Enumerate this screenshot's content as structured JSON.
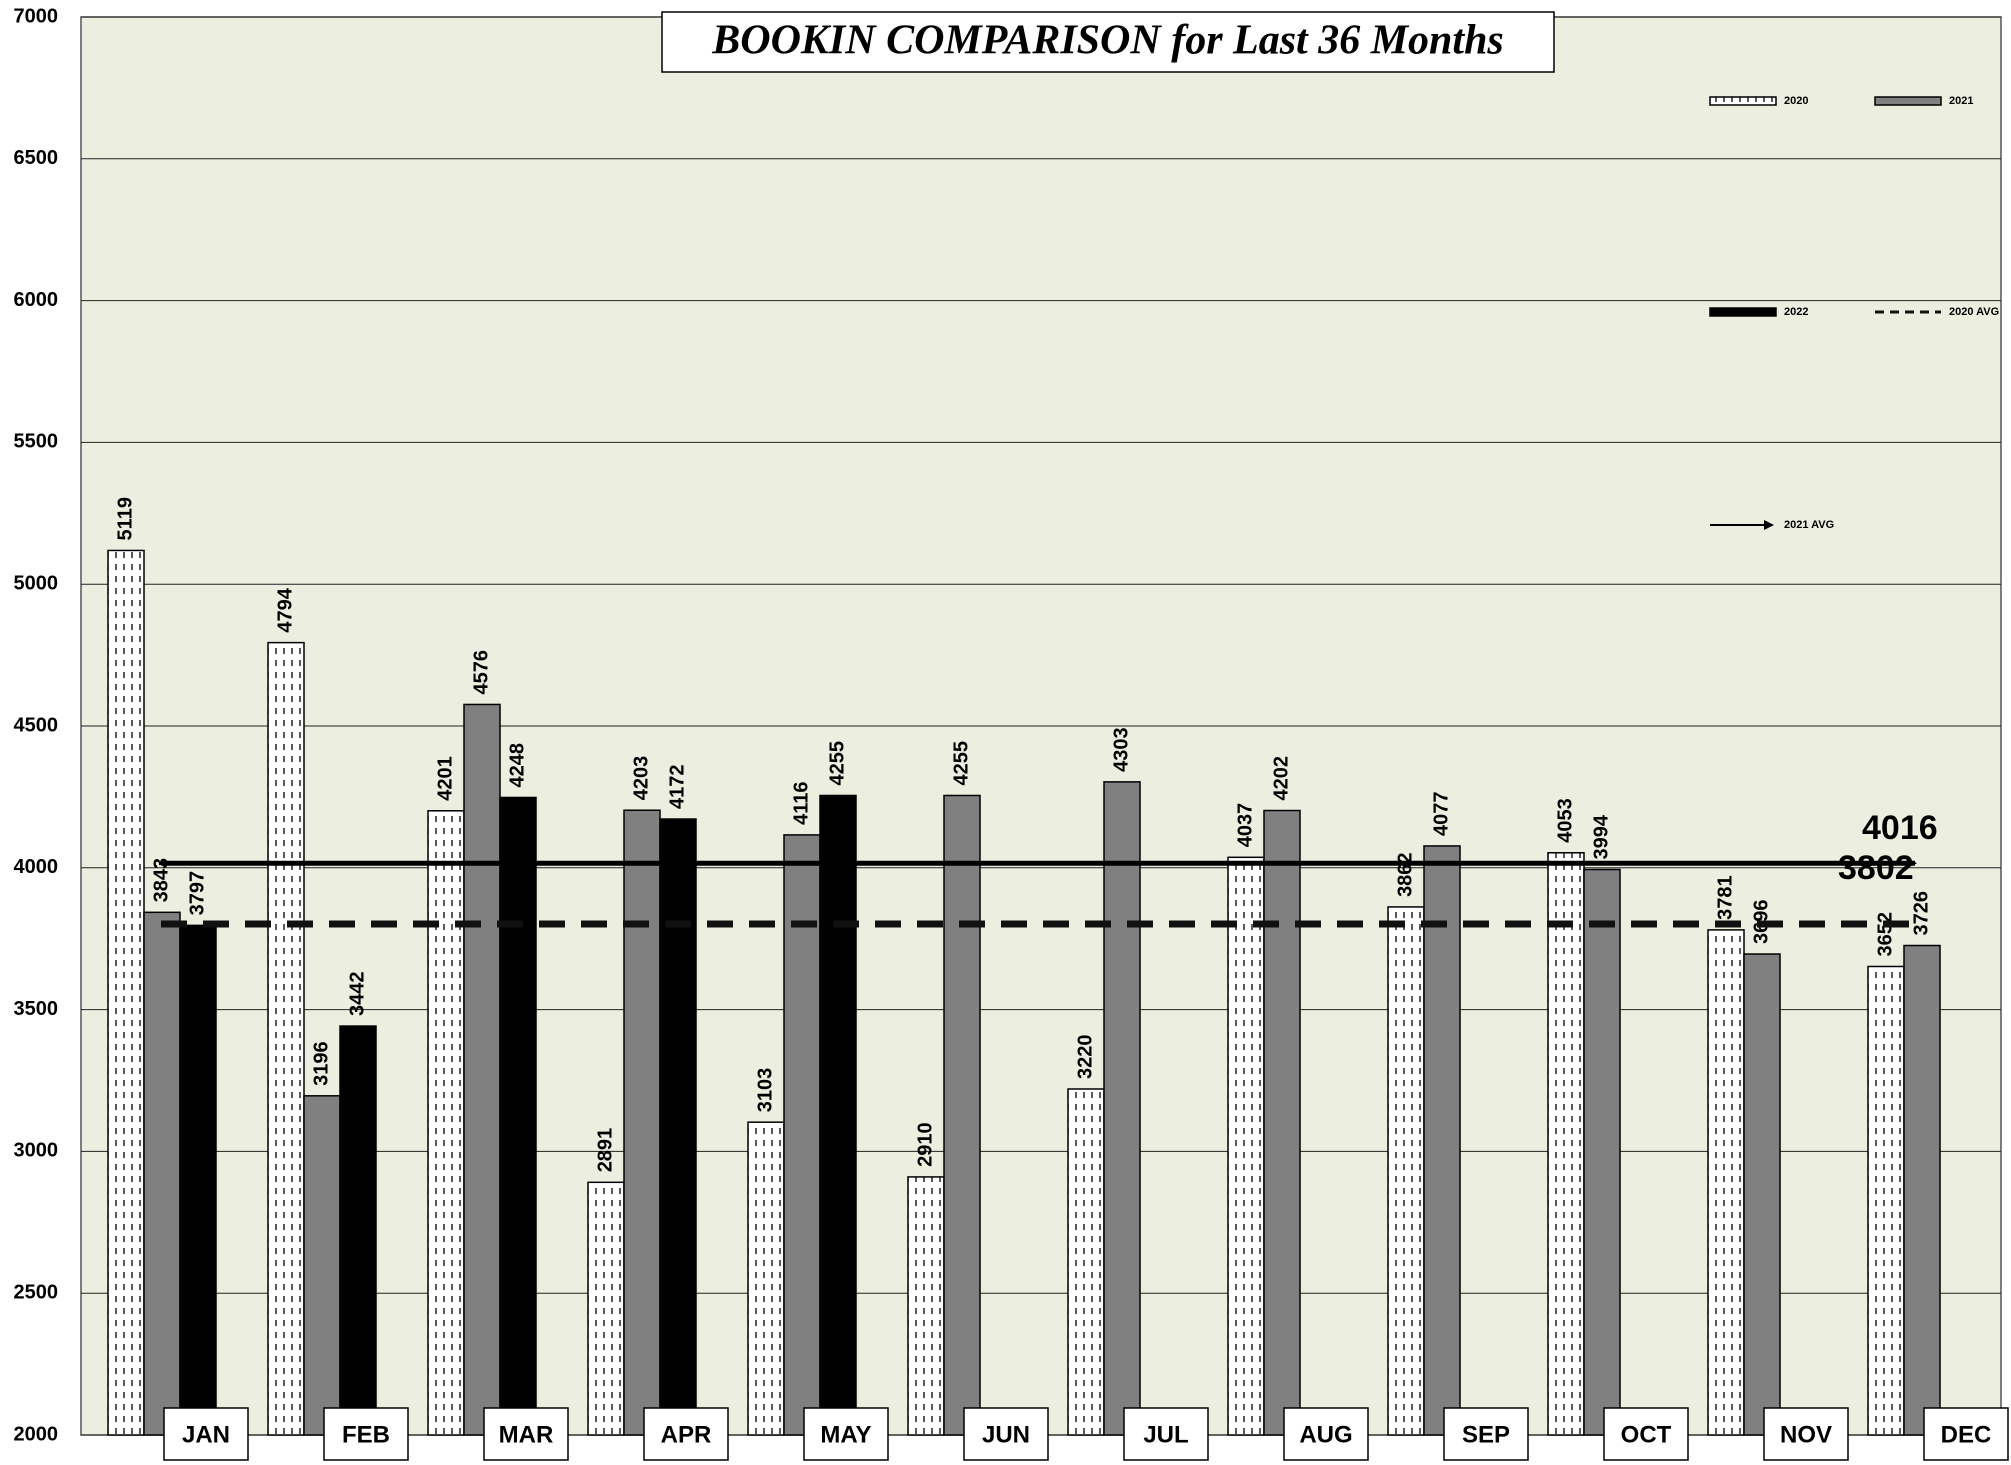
{
  "chart_data": {
    "type": "bar",
    "title": "BOOKIN COMPARISON for Last 36 Months",
    "categories": [
      "JAN",
      "FEB",
      "MAR",
      "APR",
      "MAY",
      "JUN",
      "JUL",
      "AUG",
      "SEP",
      "OCT",
      "NOV",
      "DEC"
    ],
    "series": [
      {
        "name": "2020",
        "color": "#ffffff",
        "hatch": true,
        "values": [
          5119,
          4794,
          4201,
          2891,
          3103,
          2910,
          3220,
          4037,
          3862,
          4053,
          3781,
          3652
        ]
      },
      {
        "name": "2021",
        "color": "#808080",
        "values": [
          3843,
          3196,
          4576,
          4203,
          4116,
          4255,
          4303,
          4202,
          4077,
          3994,
          3696,
          3726
        ]
      },
      {
        "name": "2022",
        "color": "#000000",
        "values": [
          3797,
          3442,
          4248,
          4172,
          4255,
          null,
          null,
          null,
          null,
          null,
          null,
          null
        ]
      }
    ],
    "reference_lines": [
      {
        "name": "2020 AVG",
        "value": 3802,
        "style": "dashed",
        "color": "#111111"
      },
      {
        "name": "2021 AVG",
        "value": 4016,
        "style": "solid",
        "color": "#000000"
      }
    ],
    "ylim": [
      2000,
      7000
    ],
    "yticks": [
      2000,
      2500,
      3000,
      3500,
      4000,
      4500,
      5000,
      5500,
      6000,
      6500,
      7000
    ],
    "grid": true
  }
}
